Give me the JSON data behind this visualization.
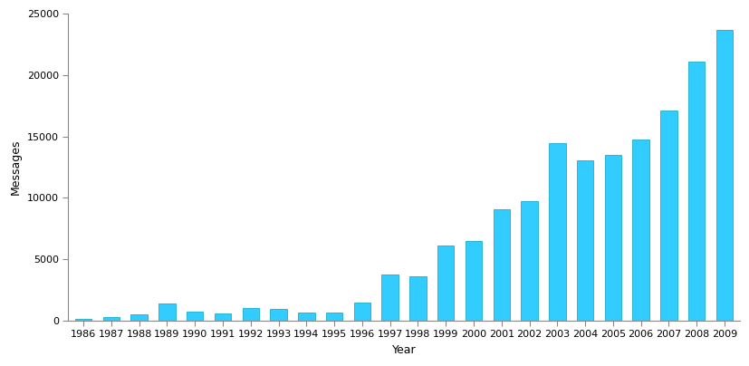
{
  "years": [
    1986,
    1987,
    1988,
    1989,
    1990,
    1991,
    1992,
    1993,
    1994,
    1995,
    1996,
    1997,
    1998,
    1999,
    2000,
    2001,
    2002,
    2003,
    2004,
    2005,
    2006,
    2007,
    2008,
    2009
  ],
  "values": [
    170,
    270,
    500,
    1380,
    720,
    560,
    1020,
    980,
    680,
    680,
    1480,
    3750,
    3600,
    6150,
    6500,
    9050,
    9700,
    14450,
    13050,
    13500,
    14750,
    17100,
    21100,
    23650
  ],
  "bar_color": "#33CCFF",
  "bar_edgecolor": "#1AADCE",
  "xlabel": "Year",
  "ylabel": "Messages",
  "ylim": [
    0,
    25000
  ],
  "yticks": [
    0,
    5000,
    10000,
    15000,
    20000,
    25000
  ],
  "background_color": "#ffffff",
  "spine_color": "#888888",
  "tick_color": "#555555",
  "label_fontsize": 9,
  "tick_fontsize": 8
}
